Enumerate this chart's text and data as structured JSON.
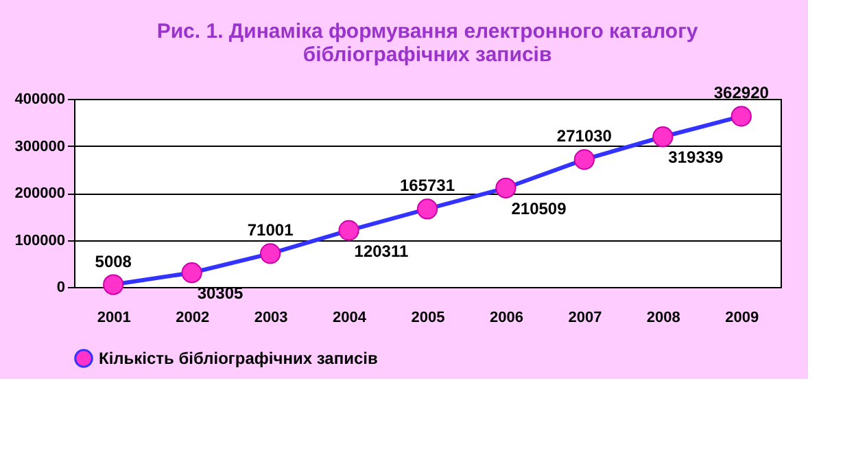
{
  "chart_data": {
    "type": "line",
    "title": "Рис. 1. Динаміка формування електронного каталогу бібліографічних записів",
    "categories": [
      "2001",
      "2002",
      "2003",
      "2004",
      "2005",
      "2006",
      "2007",
      "2008",
      "2009"
    ],
    "series": [
      {
        "name": "Кількість бібліографічних записів",
        "color": "#3333ff",
        "values": [
          5008,
          30305,
          71001,
          120311,
          165731,
          210509,
          271030,
          319339,
          362920
        ]
      }
    ],
    "ylim": [
      0,
      400000
    ],
    "yticks": [
      0,
      100000,
      200000,
      300000,
      400000
    ],
    "grid": "y",
    "legend": "bottom",
    "marker": "circle",
    "line_style": "solid",
    "data_labels": true
  }
}
